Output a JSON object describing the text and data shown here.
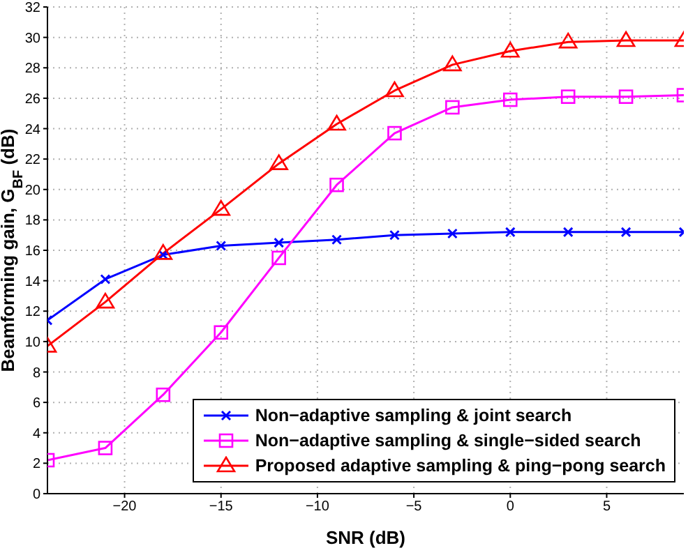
{
  "chart_data": {
    "type": "line",
    "xlabel": "SNR (dB)",
    "ylabel": "Beamforming gain, G$_{BF}$ (dB)",
    "x": [
      -24,
      -21,
      -18,
      -15,
      -12,
      -9,
      -6,
      -3,
      0,
      3,
      6,
      9
    ],
    "series": [
      {
        "name": "Non−adaptive sampling & joint search",
        "color": "#0000ff",
        "marker": "cross",
        "values": [
          11.4,
          14.1,
          15.7,
          16.3,
          16.5,
          16.7,
          17.0,
          17.1,
          17.2,
          17.2,
          17.2,
          17.2
        ]
      },
      {
        "name": "Non−adaptive sampling & single−sided search",
        "color": "#ff00ff",
        "marker": "square",
        "values": [
          2.2,
          3.0,
          6.5,
          10.6,
          15.5,
          20.3,
          23.7,
          25.4,
          25.9,
          26.1,
          26.1,
          26.2
        ]
      },
      {
        "name": "Proposed adaptive sampling & ping−pong search",
        "color": "#ff0000",
        "marker": "triangle",
        "values": [
          9.7,
          12.6,
          15.8,
          18.7,
          21.7,
          24.3,
          26.5,
          28.2,
          29.1,
          29.7,
          29.8,
          29.8
        ]
      }
    ],
    "xlim": [
      -24,
      9
    ],
    "xticks": [
      {
        "value": -20,
        "label": "−20"
      },
      {
        "value": -15,
        "label": "−15"
      },
      {
        "value": -10,
        "label": "−10"
      },
      {
        "value": -5,
        "label": "−5"
      },
      0,
      5
    ],
    "ylim": [
      0,
      32
    ],
    "yticks": [
      0,
      2,
      4,
      6,
      8,
      10,
      12,
      14,
      16,
      18,
      20,
      22,
      24,
      26,
      28,
      30,
      32
    ],
    "grid": true,
    "legend": "bottom right",
    "line_style": "solid"
  }
}
